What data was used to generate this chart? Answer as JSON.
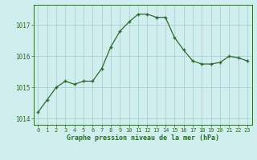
{
  "x": [
    0,
    1,
    2,
    3,
    4,
    5,
    6,
    7,
    8,
    9,
    10,
    11,
    12,
    13,
    14,
    15,
    16,
    17,
    18,
    19,
    20,
    21,
    22,
    23
  ],
  "y": [
    1014.2,
    1014.6,
    1015.0,
    1015.2,
    1015.1,
    1015.2,
    1015.2,
    1015.6,
    1016.3,
    1016.8,
    1017.1,
    1017.35,
    1017.35,
    1017.25,
    1017.25,
    1016.6,
    1016.2,
    1015.85,
    1015.75,
    1015.75,
    1015.8,
    1016.0,
    1015.95,
    1015.85
  ],
  "line_color": "#2d6a2d",
  "marker": "+",
  "marker_size": 3.5,
  "bg_color": "#d0eeee",
  "grid_color": "#a0cccc",
  "xlabel": "Graphe pression niveau de la mer (hPa)",
  "xlabel_color": "#2d6a2d",
  "tick_color": "#2d6a2d",
  "ylim": [
    1013.8,
    1017.65
  ],
  "yticks": [
    1014,
    1015,
    1016,
    1017
  ],
  "xlim": [
    -0.5,
    23.5
  ],
  "xticks": [
    0,
    1,
    2,
    3,
    4,
    5,
    6,
    7,
    8,
    9,
    10,
    11,
    12,
    13,
    14,
    15,
    16,
    17,
    18,
    19,
    20,
    21,
    22,
    23
  ]
}
